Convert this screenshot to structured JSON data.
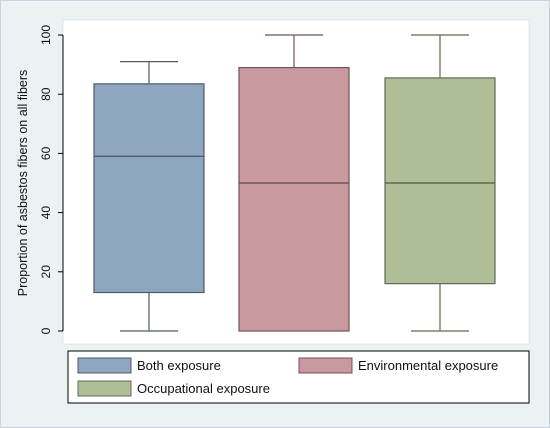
{
  "chart_data": {
    "type": "boxplot",
    "ylabel": "Proportion of asbestos fibers on all fibers",
    "ylim": [
      0,
      100
    ],
    "yticks": [
      0,
      20,
      40,
      60,
      80,
      100
    ],
    "grid": false,
    "legend_position": "bottom",
    "series": [
      {
        "name": "Both exposure",
        "min": 0,
        "q1": 13,
        "median": 59,
        "q3": 83.5,
        "max": 91,
        "color": "#8ea6bf"
      },
      {
        "name": "Environmental exposure",
        "min": 0,
        "q1": 0,
        "median": 50,
        "q3": 89,
        "max": 100,
        "color": "#c9999f"
      },
      {
        "name": "Occupational exposure",
        "min": 0,
        "q1": 16,
        "median": 50,
        "q3": 85.5,
        "max": 100,
        "color": "#aebf98"
      }
    ]
  }
}
